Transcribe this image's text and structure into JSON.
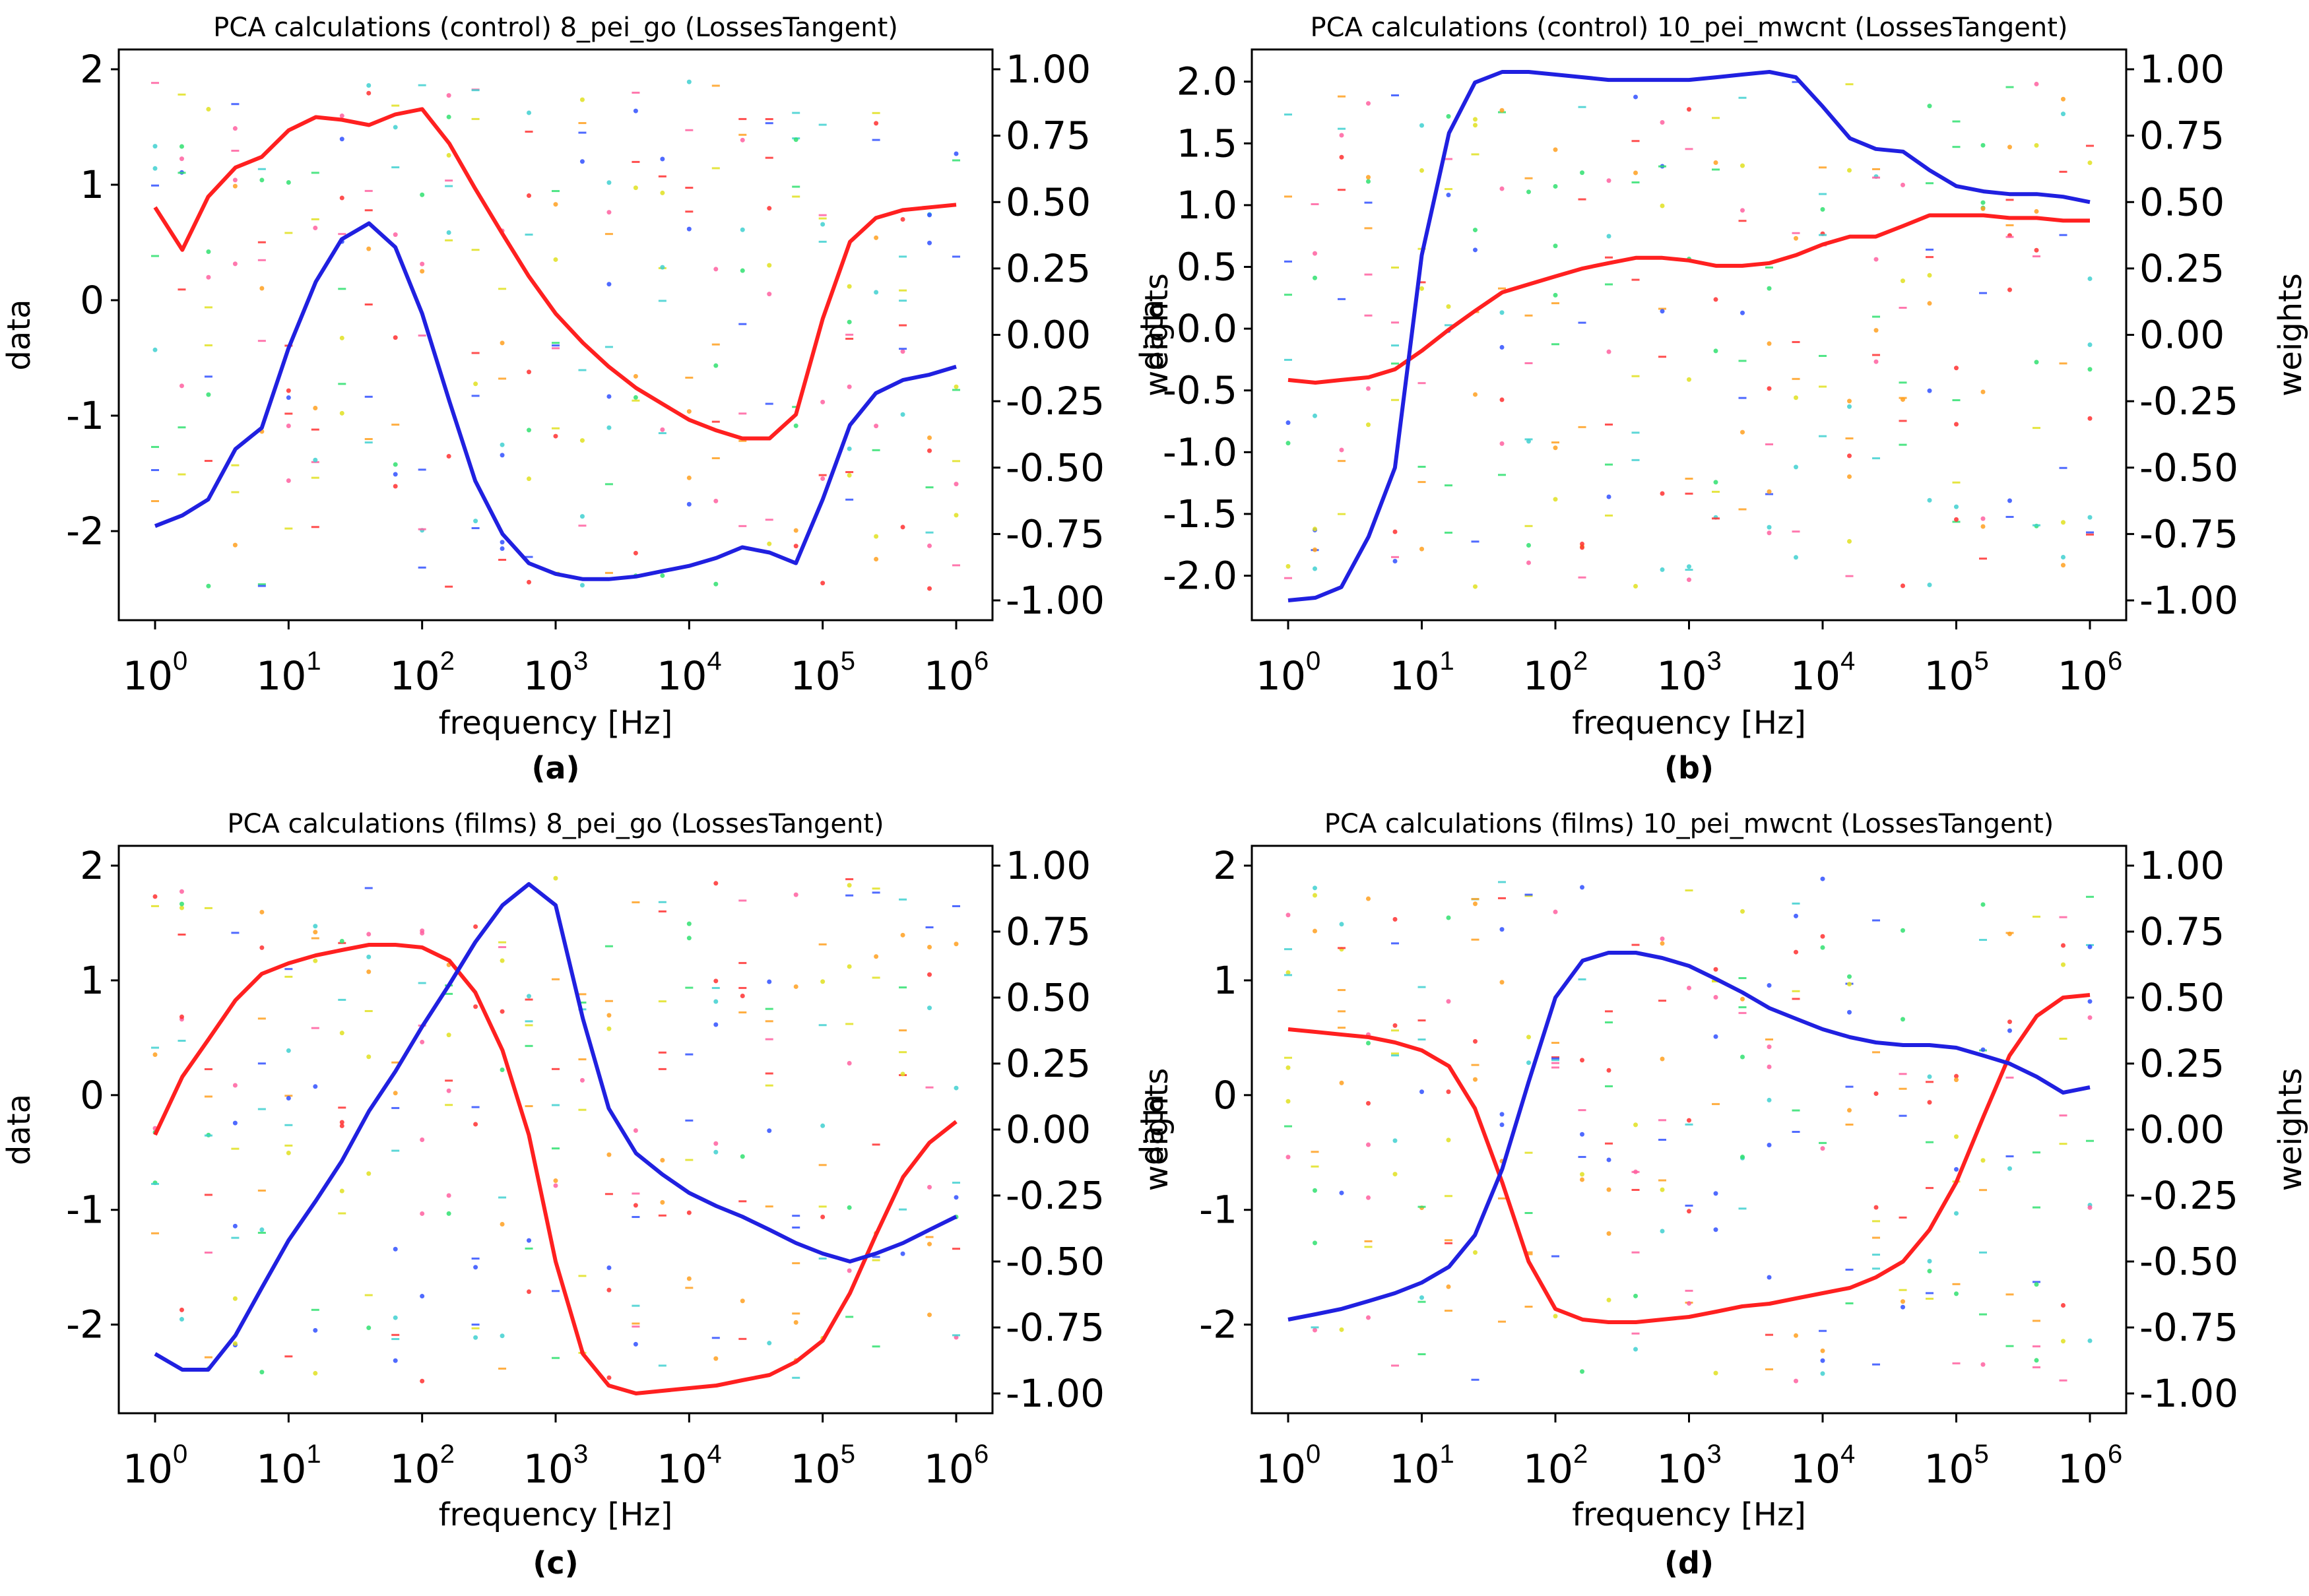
{
  "chart_data": [
    {
      "panel_label": "(a)",
      "type": "line",
      "title": "PCA calculations (control) 8_pei_go (LossesTangent)",
      "xlabel": "frequency [Hz]",
      "ylabel_left": "data",
      "ylabel_right": "weights",
      "x_scale": "log",
      "xlim": [
        1,
        1000000
      ],
      "ylim_left": [
        -2.6,
        2.0
      ],
      "ylim_right": [
        -1.0,
        1.0
      ],
      "yticks_left": [
        "2",
        "1",
        "0",
        "-1",
        "-2"
      ],
      "yticks_right": [
        "1.00",
        "0.75",
        "0.50",
        "0.25",
        "0.00",
        "-0.25",
        "-0.50",
        "-0.75",
        "-1.00"
      ],
      "xticks": [
        "0",
        "1",
        "2",
        "3",
        "4",
        "5",
        "6"
      ],
      "series": [
        {
          "color": "#ff2020",
          "x": [
            1,
            1.6,
            2.5,
            4,
            6.3,
            10,
            16,
            25,
            40,
            63,
            100,
            160,
            250,
            400,
            630,
            1000,
            1600,
            2500,
            4000,
            6300,
            10000,
            16000,
            25000,
            40000,
            63000,
            100000,
            160000,
            250000,
            400000,
            630000,
            1000000
          ],
          "y": [
            0.48,
            0.32,
            0.52,
            0.63,
            0.67,
            0.77,
            0.82,
            0.81,
            0.79,
            0.83,
            0.85,
            0.72,
            0.55,
            0.38,
            0.22,
            0.08,
            -0.03,
            -0.12,
            -0.2,
            -0.26,
            -0.32,
            -0.36,
            -0.39,
            -0.39,
            -0.3,
            0.06,
            0.35,
            0.44,
            0.47,
            0.48,
            0.49
          ]
        },
        {
          "color": "#2020e0",
          "x": [
            1,
            1.6,
            2.5,
            4,
            6.3,
            10,
            16,
            25,
            40,
            63,
            100,
            160,
            250,
            400,
            630,
            1000,
            1600,
            2500,
            4000,
            6300,
            10000,
            16000,
            25000,
            40000,
            63000,
            100000,
            160000,
            250000,
            400000,
            630000,
            1000000
          ],
          "y": [
            -0.72,
            -0.68,
            -0.62,
            -0.43,
            -0.35,
            -0.05,
            0.2,
            0.36,
            0.42,
            0.33,
            0.08,
            -0.25,
            -0.55,
            -0.75,
            -0.86,
            -0.9,
            -0.92,
            -0.92,
            -0.91,
            -0.89,
            -0.87,
            -0.84,
            -0.8,
            -0.82,
            -0.86,
            -0.62,
            -0.34,
            -0.22,
            -0.17,
            -0.15,
            -0.12
          ]
        }
      ]
    },
    {
      "panel_label": "(b)",
      "type": "line",
      "title": "PCA calculations (control) 10_pei_mwcnt (LossesTangent)",
      "xlabel": "frequency [Hz]",
      "ylabel_left": "data",
      "ylabel_right": "weights",
      "x_scale": "log",
      "xlim": [
        1,
        1000000
      ],
      "ylim_left": [
        -2.2,
        2.1
      ],
      "ylim_right": [
        -1.0,
        1.0
      ],
      "yticks_left": [
        "2.0",
        "1.5",
        "1.0",
        "0.5",
        "0.0",
        "-0.5",
        "-1.0",
        "-1.5",
        "-2.0"
      ],
      "yticks_right": [
        "1.00",
        "0.75",
        "0.50",
        "0.25",
        "0.00",
        "-0.25",
        "-0.50",
        "-0.75",
        "-1.00"
      ],
      "xticks": [
        "0",
        "1",
        "2",
        "3",
        "4",
        "5",
        "6"
      ],
      "series": [
        {
          "color": "#ff2020",
          "x": [
            1,
            1.6,
            2.5,
            4,
            6.3,
            10,
            16,
            25,
            40,
            63,
            100,
            160,
            250,
            400,
            630,
            1000,
            1600,
            2500,
            4000,
            6300,
            10000,
            16000,
            25000,
            40000,
            63000,
            100000,
            160000,
            250000,
            400000,
            630000,
            1000000
          ],
          "y": [
            -0.17,
            -0.18,
            -0.17,
            -0.16,
            -0.13,
            -0.06,
            0.02,
            0.09,
            0.16,
            0.19,
            0.22,
            0.25,
            0.27,
            0.29,
            0.29,
            0.28,
            0.26,
            0.26,
            0.27,
            0.3,
            0.34,
            0.37,
            0.37,
            0.41,
            0.45,
            0.45,
            0.45,
            0.44,
            0.44,
            0.43,
            0.43
          ]
        },
        {
          "color": "#2020e0",
          "x": [
            1,
            1.6,
            2.5,
            4,
            6.3,
            10,
            16,
            25,
            40,
            63,
            100,
            160,
            250,
            400,
            630,
            1000,
            1600,
            2500,
            4000,
            6300,
            10000,
            16000,
            25000,
            40000,
            63000,
            100000,
            160000,
            250000,
            400000,
            630000,
            1000000
          ],
          "y": [
            -1.0,
            -0.99,
            -0.95,
            -0.76,
            -0.5,
            0.3,
            0.76,
            0.95,
            0.99,
            0.99,
            0.98,
            0.97,
            0.96,
            0.96,
            0.96,
            0.96,
            0.97,
            0.98,
            0.99,
            0.97,
            0.86,
            0.74,
            0.7,
            0.69,
            0.62,
            0.56,
            0.54,
            0.53,
            0.53,
            0.52,
            0.5
          ]
        }
      ]
    },
    {
      "panel_label": "(c)",
      "type": "line",
      "title": "PCA calculations (films) 8_pei_go (LossesTangent)",
      "xlabel": "frequency [Hz]",
      "ylabel_left": "data",
      "ylabel_right": "weights",
      "x_scale": "log",
      "xlim": [
        1,
        1000000
      ],
      "ylim_left": [
        -2.6,
        2.0
      ],
      "ylim_right": [
        -1.0,
        1.0
      ],
      "yticks_left": [
        "2",
        "1",
        "0",
        "-1",
        "-2"
      ],
      "yticks_right": [
        "1.00",
        "0.75",
        "0.50",
        "0.25",
        "0.00",
        "-0.25",
        "-0.50",
        "-0.75",
        "-1.00"
      ],
      "xticks": [
        "0",
        "1",
        "2",
        "3",
        "4",
        "5",
        "6"
      ],
      "series": [
        {
          "color": "#ff2020",
          "x": [
            1,
            1.6,
            2.5,
            4,
            6.3,
            10,
            16,
            25,
            40,
            63,
            100,
            160,
            250,
            400,
            630,
            1000,
            1600,
            2500,
            4000,
            6300,
            10000,
            16000,
            25000,
            40000,
            63000,
            100000,
            160000,
            250000,
            400000,
            630000,
            1000000
          ],
          "y": [
            -0.02,
            0.2,
            0.34,
            0.49,
            0.59,
            0.63,
            0.66,
            0.68,
            0.7,
            0.7,
            0.69,
            0.64,
            0.52,
            0.3,
            -0.02,
            -0.5,
            -0.85,
            -0.97,
            -1.0,
            -0.99,
            -0.98,
            -0.97,
            -0.95,
            -0.93,
            -0.88,
            -0.8,
            -0.62,
            -0.4,
            -0.18,
            -0.05,
            0.03
          ]
        },
        {
          "color": "#2020e0",
          "x": [
            1,
            1.6,
            2.5,
            4,
            6.3,
            10,
            16,
            25,
            40,
            63,
            100,
            160,
            250,
            400,
            630,
            1000,
            1600,
            2500,
            4000,
            6300,
            10000,
            16000,
            25000,
            40000,
            63000,
            100000,
            160000,
            250000,
            400000,
            630000,
            1000000
          ],
          "y": [
            -0.85,
            -0.91,
            -0.91,
            -0.78,
            -0.6,
            -0.42,
            -0.27,
            -0.12,
            0.07,
            0.22,
            0.39,
            0.55,
            0.71,
            0.85,
            0.93,
            0.85,
            0.42,
            0.08,
            -0.09,
            -0.17,
            -0.24,
            -0.29,
            -0.33,
            -0.38,
            -0.43,
            -0.47,
            -0.5,
            -0.47,
            -0.43,
            -0.38,
            -0.33
          ]
        }
      ]
    },
    {
      "panel_label": "(d)",
      "type": "line",
      "title": "PCA calculations (films) 10_pei_mwcnt (LossesTangent)",
      "xlabel": "frequency [Hz]",
      "ylabel_left": "data",
      "ylabel_right": "weights",
      "x_scale": "log",
      "xlim": [
        1,
        1000000
      ],
      "ylim_left": [
        -2.6,
        2.0
      ],
      "ylim_right": [
        -1.0,
        1.0
      ],
      "yticks_left": [
        "2",
        "1",
        "0",
        "-1",
        "-2"
      ],
      "yticks_right": [
        "1.00",
        "0.75",
        "0.50",
        "0.25",
        "0.00",
        "-0.25",
        "-0.50",
        "-0.75",
        "-1.00"
      ],
      "xticks": [
        "0",
        "1",
        "2",
        "3",
        "4",
        "5",
        "6"
      ],
      "series": [
        {
          "color": "#ff2020",
          "x": [
            1,
            1.6,
            2.5,
            4,
            6.3,
            10,
            16,
            25,
            40,
            63,
            100,
            160,
            250,
            400,
            630,
            1000,
            1600,
            2500,
            4000,
            6300,
            10000,
            16000,
            25000,
            40000,
            63000,
            100000,
            160000,
            250000,
            400000,
            630000,
            1000000
          ],
          "y": [
            0.38,
            0.37,
            0.36,
            0.35,
            0.33,
            0.3,
            0.24,
            0.08,
            -0.2,
            -0.5,
            -0.68,
            -0.72,
            -0.73,
            -0.73,
            -0.72,
            -0.71,
            -0.69,
            -0.67,
            -0.66,
            -0.64,
            -0.62,
            -0.6,
            -0.56,
            -0.5,
            -0.38,
            -0.2,
            0.05,
            0.28,
            0.43,
            0.5,
            0.51
          ]
        },
        {
          "color": "#2020e0",
          "x": [
            1,
            1.6,
            2.5,
            4,
            6.3,
            10,
            16,
            25,
            40,
            63,
            100,
            160,
            250,
            400,
            630,
            1000,
            1600,
            2500,
            4000,
            6300,
            10000,
            16000,
            25000,
            40000,
            63000,
            100000,
            160000,
            250000,
            400000,
            630000,
            1000000
          ],
          "y": [
            -0.72,
            -0.7,
            -0.68,
            -0.65,
            -0.62,
            -0.58,
            -0.52,
            -0.4,
            -0.15,
            0.18,
            0.5,
            0.64,
            0.67,
            0.67,
            0.65,
            0.62,
            0.57,
            0.52,
            0.46,
            0.42,
            0.38,
            0.35,
            0.33,
            0.32,
            0.32,
            0.31,
            0.28,
            0.25,
            0.2,
            0.14,
            0.16
          ]
        }
      ]
    }
  ]
}
